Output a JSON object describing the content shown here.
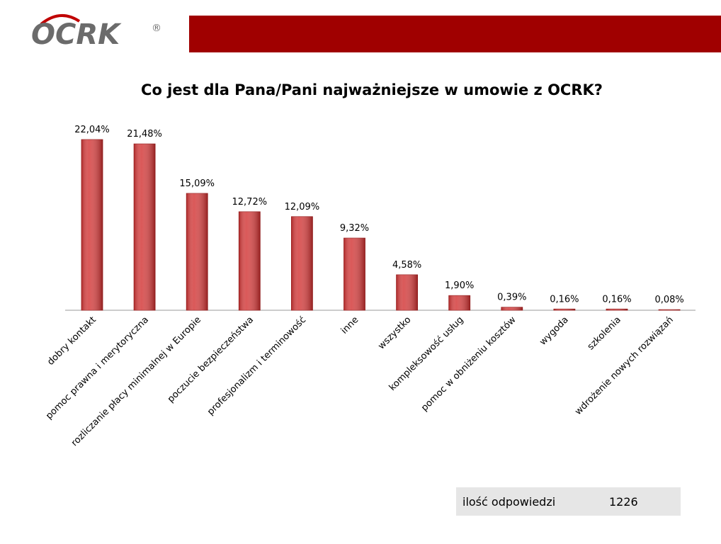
{
  "logo": {
    "text": "OCRK",
    "mark": "®"
  },
  "chart_data": {
    "type": "bar",
    "title": "Co jest dla Pana/Pani najważniejsze w umowie z OCRK?",
    "categories": [
      "dobry kontakt",
      "pomoc prawna i merytoryczna",
      "rozliczanie płacy minimalnej w Europie",
      "poczucie bezpieczeństwa",
      "profesjonalizm i terminowość",
      "inne",
      "wszystko",
      "kompleksowość usług",
      "pomoc w obniżeniu kosztów",
      "wygoda",
      "szkolenia",
      "wdrożenie nowych rozwiązań"
    ],
    "values": [
      22.04,
      21.48,
      15.09,
      12.72,
      12.09,
      9.32,
      4.58,
      1.9,
      0.39,
      0.16,
      0.16,
      0.08
    ],
    "value_labels": [
      "22,04%",
      "21,48%",
      "15,09%",
      "12,72%",
      "12,09%",
      "9,32%",
      "4,58%",
      "1,90%",
      "0,39%",
      "0,16%",
      "0,16%",
      "0,08%"
    ],
    "color": "#d43b3b"
  },
  "summary": {
    "label": "ilość odpowiedzi",
    "value": 1226
  }
}
